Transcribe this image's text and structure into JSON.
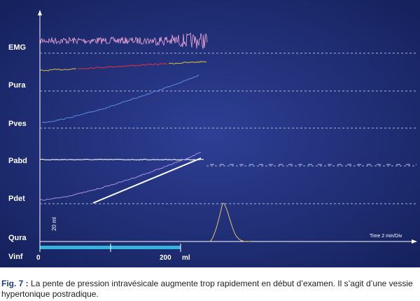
{
  "channels": [
    "EMG",
    "Pura",
    "Pves",
    "Pabd",
    "Pdet",
    "Qura",
    "Vinf"
  ],
  "scale_label": "20 ml",
  "time_label": "Time 2 min/Div",
  "vinf_axis": {
    "start": "0",
    "mark": "200",
    "unit": "ml"
  },
  "caption": {
    "label": "Fig. 7 :",
    "text": "La pente de pression intravésicale augmente trop rapidement en début d’examen. Il s’agit d’une vessie hypertonique postradique."
  }
}
